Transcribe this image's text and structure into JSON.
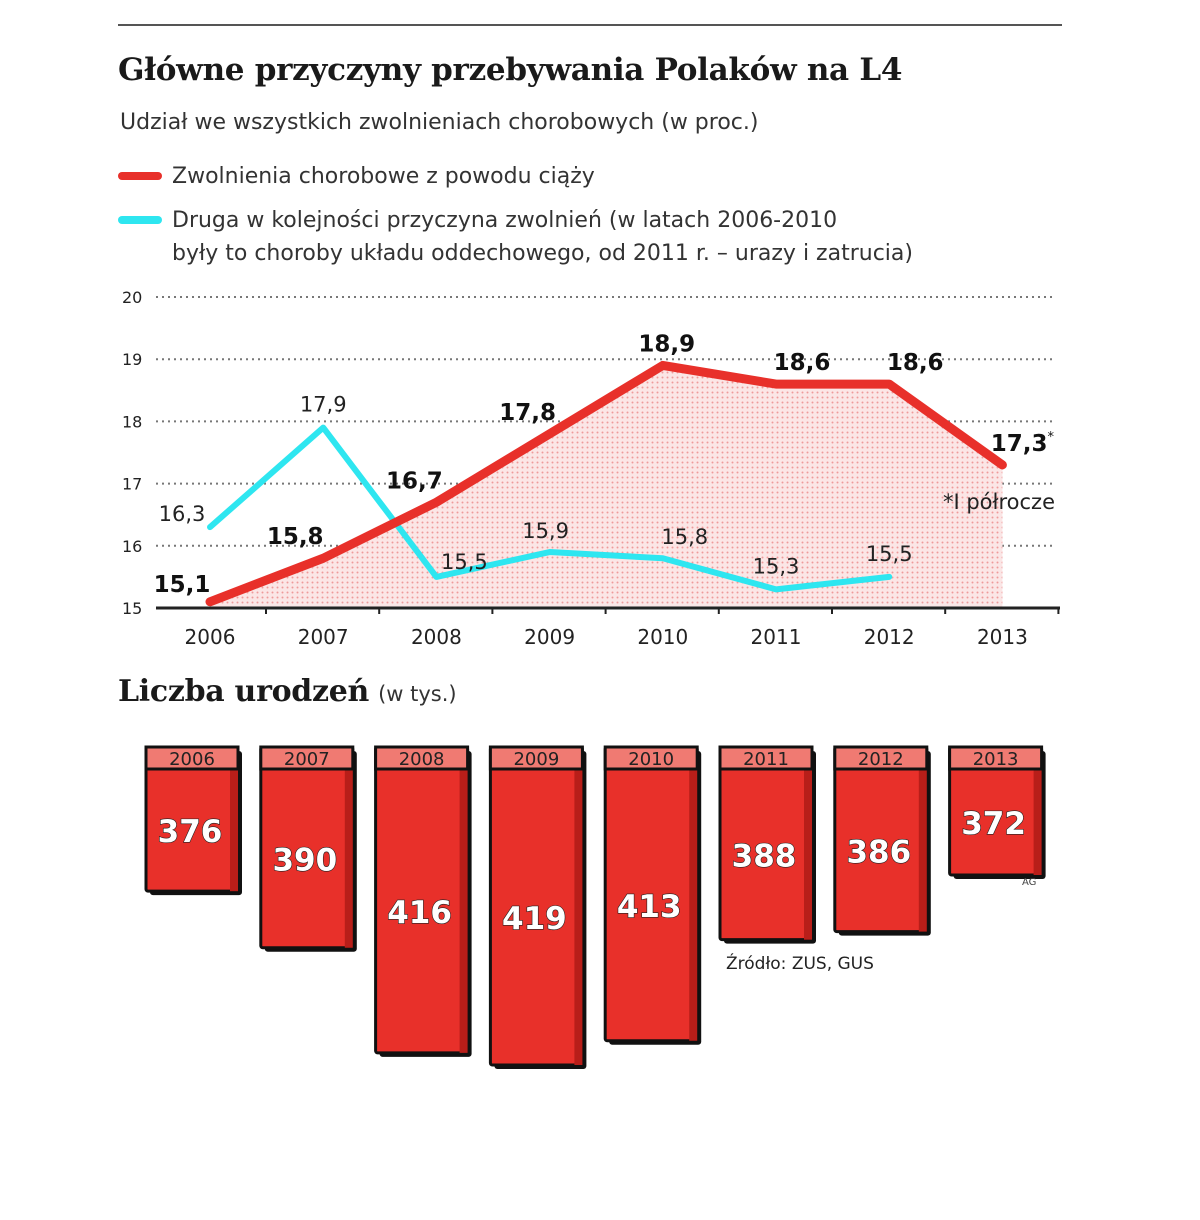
{
  "title": "Główne przyczyny przebywania Polaków na L4",
  "subtitle": "Udział we wszystkich zwolnieniach chorobowych (w proc.)",
  "legend": [
    {
      "label": "Zwolnienia chorobowe z powodu ciąży",
      "color": "#e8302a"
    },
    {
      "label": "Druga w kolejności przyczyna zwolnień (w latach 2006-2010\nbyły to choroby układu oddechowego, od 2011 r. – urazy i zatrucia)",
      "color": "#2ee6f0"
    }
  ],
  "footnote": "*I półrocze",
  "colors": {
    "red": "#e8302a",
    "cyan": "#2ee6f0",
    "bar_front": "#e8302a",
    "bar_top": "#f07a72",
    "text": "#1a1a1a"
  },
  "chart_data": [
    {
      "type": "line",
      "x": [
        "2006",
        "2007",
        "2008",
        "2009",
        "2010",
        "2011",
        "2012",
        "2013"
      ],
      "ylim": [
        15,
        20
      ],
      "yticks": [
        "15",
        "16",
        "17",
        "18",
        "19",
        "20"
      ],
      "grid": true,
      "series": [
        {
          "name": "Zwolnienia chorobowe z powodu ciąży",
          "values": [
            15.1,
            15.8,
            16.7,
            17.8,
            18.9,
            18.6,
            18.6,
            17.3
          ],
          "labels": [
            "15,1",
            "15,8",
            "16,7",
            "17,8",
            "18,9",
            "18,6",
            "18,6",
            "17,3"
          ],
          "last_label_suffix": "*",
          "area_fill": true
        },
        {
          "name": "Druga w kolejności przyczyna zwolnień",
          "values": [
            16.3,
            17.9,
            15.5,
            15.9,
            15.8,
            15.3,
            15.5,
            null
          ],
          "labels": [
            "16,3",
            "17,9",
            "15,5",
            "15,9",
            "15,8",
            "15,3",
            "15,5",
            ""
          ]
        }
      ]
    },
    {
      "type": "bar",
      "title": "Liczba urodzeń",
      "unit": "(w tys.)",
      "categories": [
        "2006",
        "2007",
        "2008",
        "2009",
        "2010",
        "2011",
        "2012",
        "2013"
      ],
      "values": [
        376,
        390,
        416,
        419,
        413,
        388,
        386,
        372
      ],
      "labels": [
        "376",
        "390",
        "416",
        "419",
        "413",
        "388",
        "386",
        "372"
      ]
    }
  ],
  "source": "Źródło: ZUS, GUS",
  "credit": "AG"
}
